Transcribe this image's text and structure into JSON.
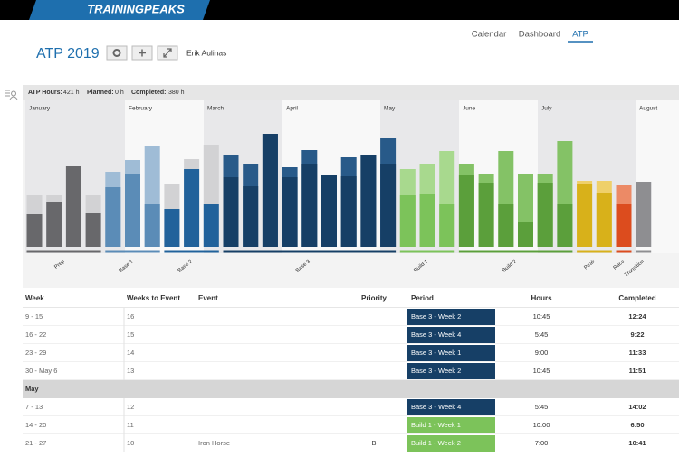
{
  "header": {
    "logo": "TRAININGPEAKS",
    "nav": [
      "Calendar",
      "Dashboard",
      "ATP"
    ],
    "active_nav": "ATP",
    "title": "ATP 2019",
    "athlete": "Erik Aulinas"
  },
  "stats": [
    {
      "label": "ATP Hours:",
      "value": "421 h"
    },
    {
      "label": "Planned:",
      "value": "0 h"
    },
    {
      "label": "Completed:",
      "value": "380 h"
    }
  ],
  "chart": {
    "months": [
      "January",
      "February",
      "March",
      "April",
      "May",
      "June",
      "July",
      "August"
    ],
    "phases": [
      {
        "name": "Prep",
        "color": "#68686b",
        "light_color": "#d2d2d4",
        "weeks": [
          {
            "planned": 5.8,
            "completed": 3.6
          },
          {
            "planned": 5.8,
            "completed": 5.0
          },
          {
            "planned": 9.0,
            "completed": 9.0
          },
          {
            "planned": 5.8,
            "completed": 3.8
          }
        ]
      },
      {
        "name": "Base 1",
        "color": "#5b8cb7",
        "light_color": "#9fbcd6",
        "weeks": [
          {
            "planned": 8.3,
            "completed": 6.6
          },
          {
            "planned": 9.6,
            "completed": 8.1
          },
          {
            "planned": 11.2,
            "completed": 4.8
          }
        ]
      },
      {
        "name": "Base 2",
        "color": "#21629b",
        "light_color": "#d2d2d4",
        "weeks": [
          {
            "planned": 7.0,
            "completed": 4.2
          },
          {
            "planned": 9.7,
            "completed": 8.6
          },
          {
            "planned": 11.3,
            "completed": 4.8
          }
        ]
      },
      {
        "name": "Base 3",
        "color": "#163f66",
        "light_color": "#285a89",
        "weeks": [
          {
            "planned": 10.2,
            "completed": 7.7
          },
          {
            "planned": 9.2,
            "completed": 6.7
          },
          {
            "planned": 12.5,
            "completed": 12.5
          },
          {
            "planned": 8.9,
            "completed": 7.7
          },
          {
            "planned": 10.7,
            "completed": 9.2
          },
          {
            "planned": 8.0,
            "completed": 8.0
          },
          {
            "planned": 9.9,
            "completed": 7.8
          },
          {
            "planned": 10.2,
            "completed": 10.2
          },
          {
            "planned": 12.0,
            "completed": 9.2
          }
        ]
      },
      {
        "name": "Build 1",
        "color": "#7cc35a",
        "light_color": "#a8d98e",
        "weeks": [
          {
            "planned": 8.6,
            "completed": 5.8
          },
          {
            "planned": 9.2,
            "completed": 5.9
          },
          {
            "planned": 10.6,
            "completed": 4.8
          }
        ]
      },
      {
        "name": "Build 2",
        "color": "#5b9f3b",
        "light_color": "#84c266",
        "weeks": [
          {
            "planned": 9.2,
            "completed": 8.0
          },
          {
            "planned": 8.1,
            "completed": 7.1
          },
          {
            "planned": 10.6,
            "completed": 4.8
          },
          {
            "planned": 8.1,
            "completed": 2.8
          },
          {
            "planned": 8.1,
            "completed": 7.1
          },
          {
            "planned": 11.7,
            "completed": 4.8
          }
        ]
      },
      {
        "name": "Peak",
        "color": "#d8b11a",
        "light_color": "#efd06a",
        "weeks": [
          {
            "planned": 7.3,
            "completed": 7.0
          },
          {
            "planned": 7.3,
            "completed": 6.0
          }
        ]
      },
      {
        "name": "Race",
        "color": "#dc4c1e",
        "light_color": "#ec8a66",
        "weeks": [
          {
            "planned": 6.9,
            "completed": 4.8
          }
        ]
      },
      {
        "name": "Transition",
        "color": "#8e8e91",
        "light_color": "#c4c4c6",
        "weeks": [
          {
            "planned": 7.2,
            "completed": 7.2
          }
        ]
      }
    ]
  },
  "table": {
    "columns": {
      "week": "Week",
      "weeks_to_event": "Weeks to Event",
      "event": "Event",
      "priority": "Priority",
      "period": "Period",
      "hours": "Hours",
      "completed": "Completed"
    },
    "rows": [
      {
        "week": "9 - 15",
        "weeks_to_event": "16",
        "period": "Base 3 - Week 2",
        "hours": "10:45",
        "completed": "12:24"
      },
      {
        "week": "16 - 22",
        "weeks_to_event": "15",
        "period": "Base 3 - Week 4",
        "hours": "5:45",
        "completed": "9:22"
      },
      {
        "week": "23 - 29",
        "weeks_to_event": "14",
        "period": "Base 3 - Week 1",
        "hours": "9:00",
        "completed": "11:33"
      },
      {
        "week": "30 - May 6",
        "weeks_to_event": "13",
        "period": "Base 3 - Week 2",
        "hours": "10:45",
        "completed": "11:51"
      },
      {
        "group": "May"
      },
      {
        "week": "7 - 13",
        "weeks_to_event": "12",
        "period": "Base 3 - Week 4",
        "hours": "5:45",
        "completed": "14:02"
      },
      {
        "week": "14 - 20",
        "weeks_to_event": "11",
        "period": "Build 1 - Week 1",
        "hours": "10:00",
        "completed": "6:50"
      },
      {
        "week": "21 - 27",
        "weeks_to_event": "10",
        "event": "Iron Horse",
        "priority": "B",
        "period": "Build 1 - Week 2",
        "hours": "7:00",
        "completed": "10:41"
      }
    ]
  }
}
